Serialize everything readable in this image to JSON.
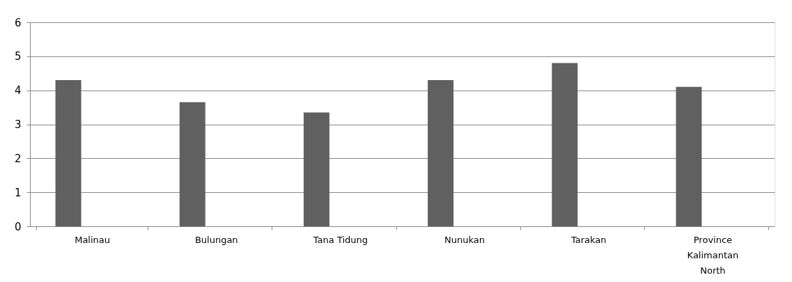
{
  "chart_data": {
    "type": "bar",
    "categories": [
      "Malinau",
      "Bulungan",
      "Tana Tidung",
      "Nunukan",
      "Tarakan",
      "Province Kalimantan North"
    ],
    "values": [
      4.3,
      3.65,
      3.35,
      4.3,
      4.8,
      4.1
    ],
    "color": "#606060",
    "ylim": [
      0,
      6
    ],
    "yticks": [
      0,
      1,
      2,
      3,
      4,
      5,
      6
    ],
    "grid": "y"
  }
}
